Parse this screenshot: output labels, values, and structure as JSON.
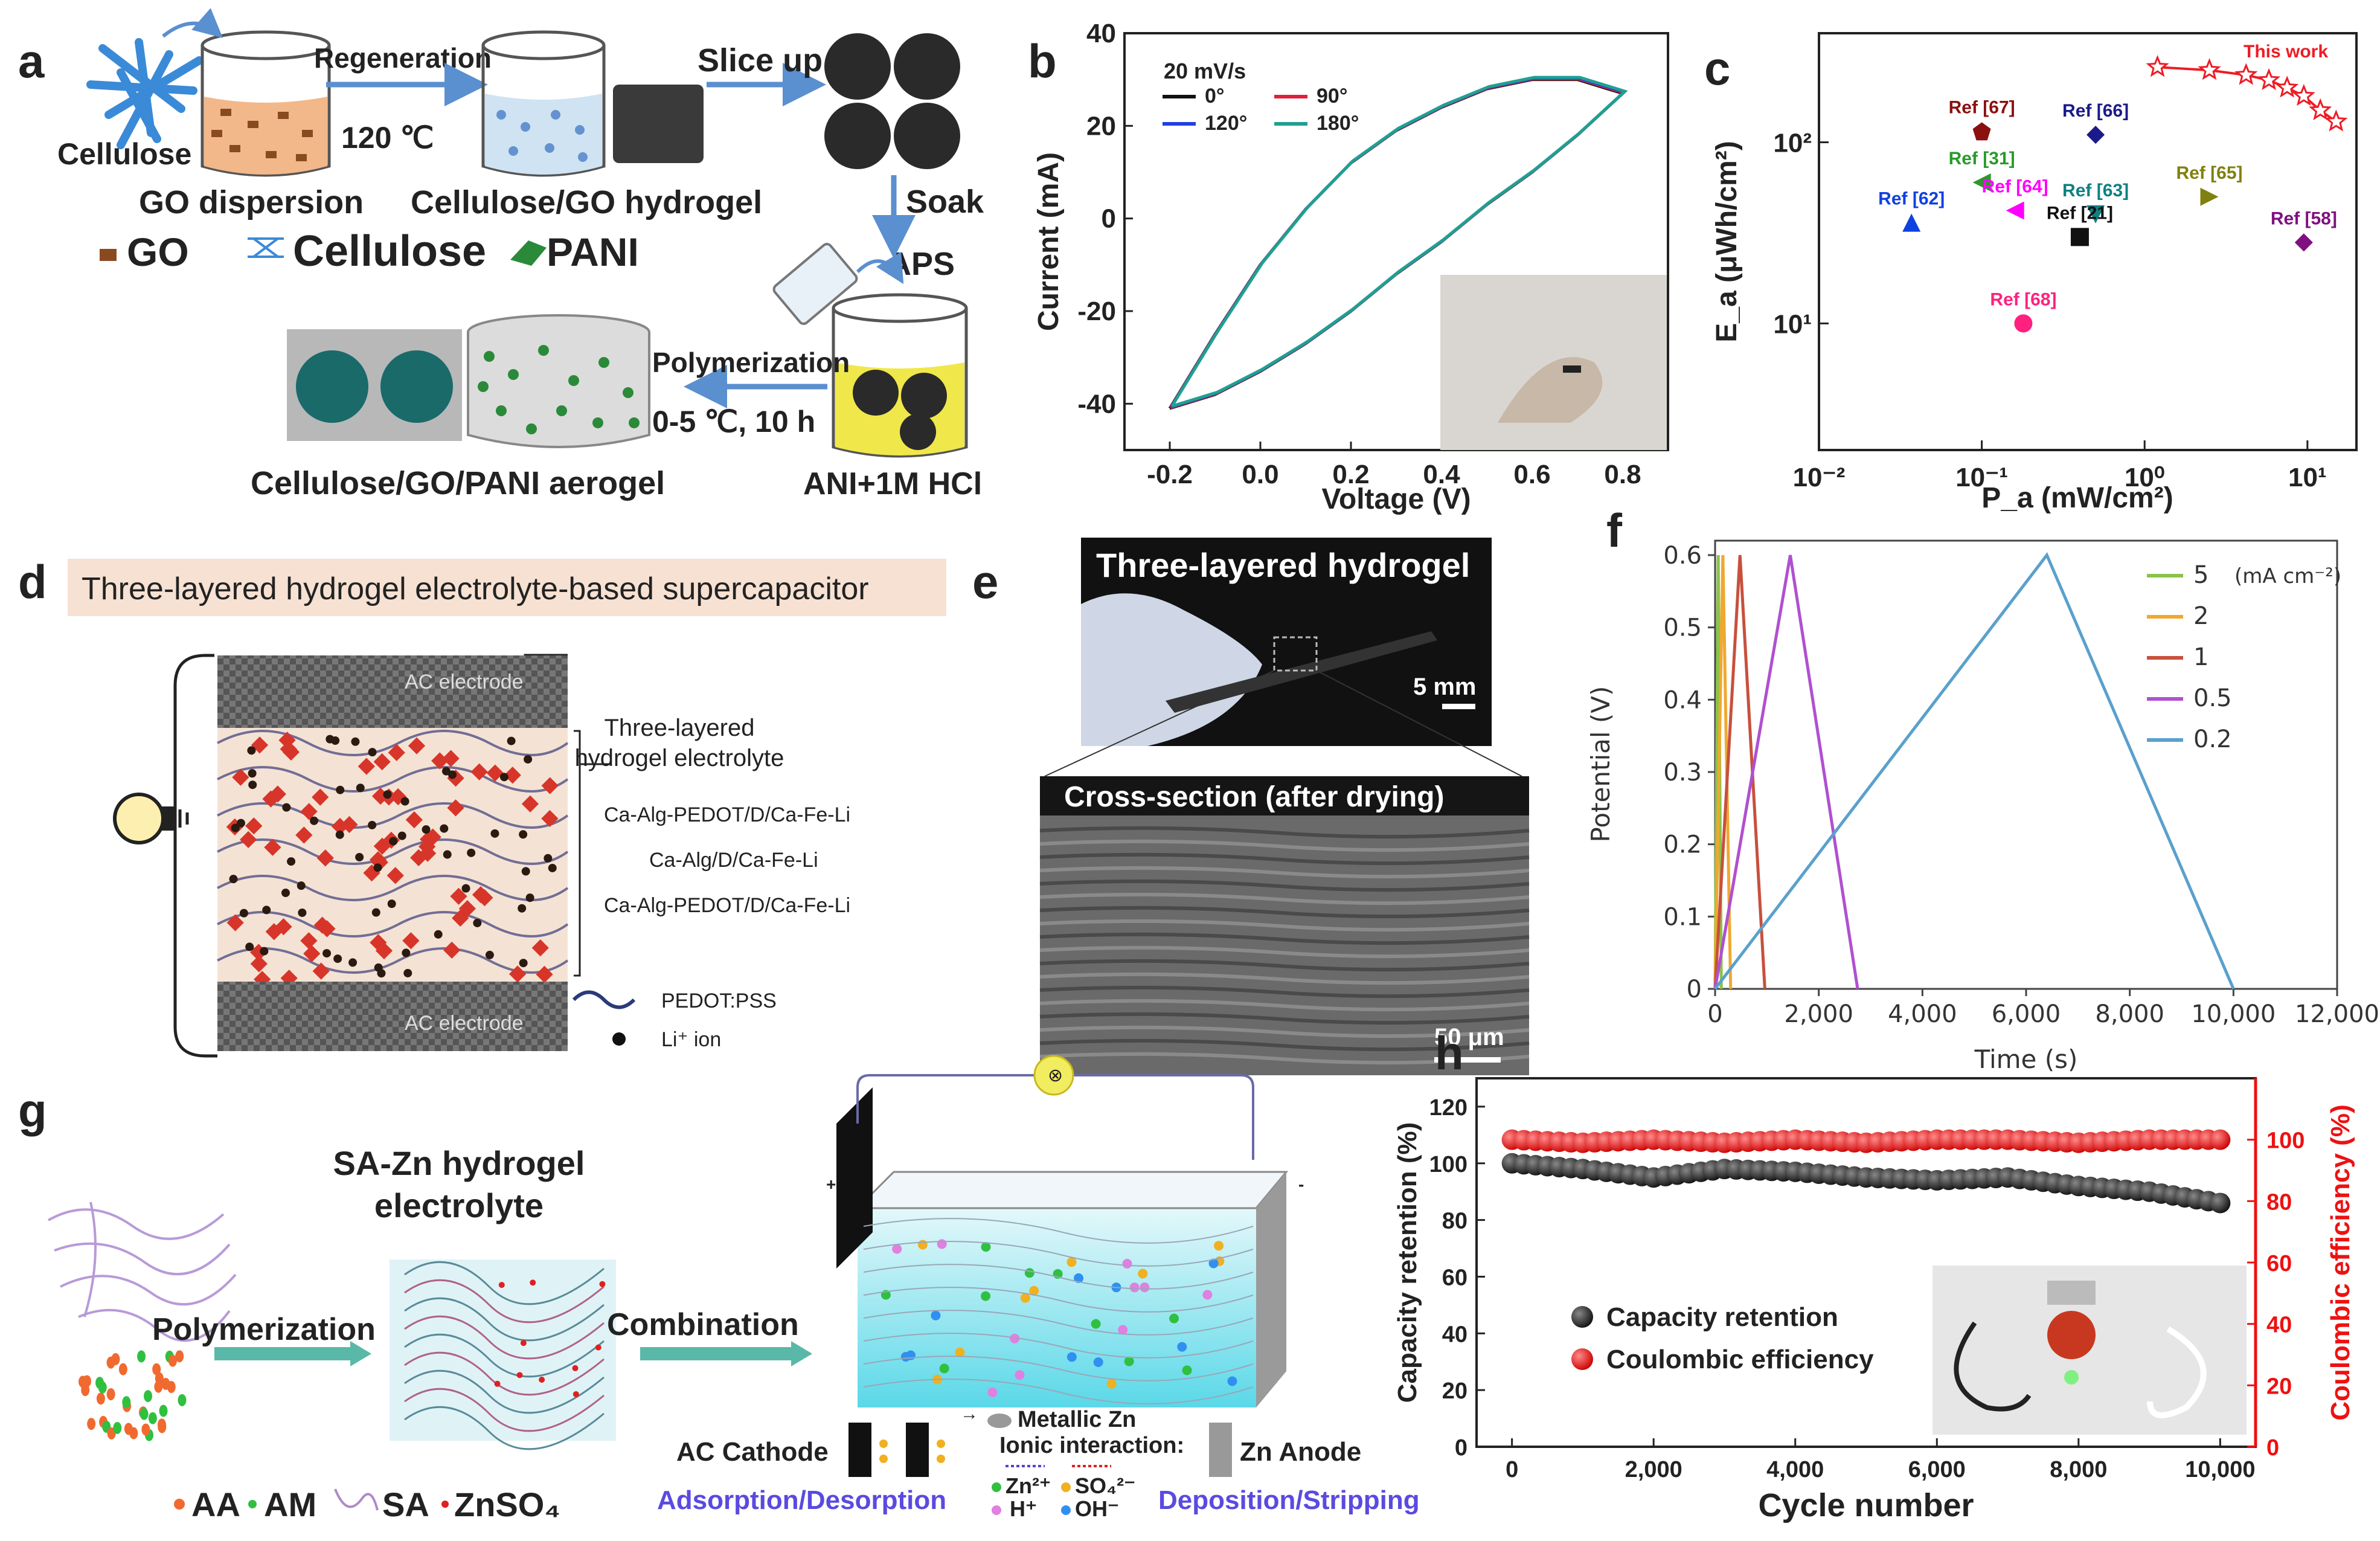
{
  "panel_labels": [
    "a",
    "b",
    "c",
    "d",
    "e",
    "f",
    "g",
    "h"
  ],
  "panel_a": {
    "cellulose": "Cellulose",
    "regeneration": "Regeneration",
    "temp": "120 ℃",
    "go_dispersion": "GO dispersion",
    "hydrogel": "Cellulose/GO hydrogel",
    "slice_up": "Slice up",
    "soak": "Soak",
    "aps": "APS",
    "polymerization": "Polymerization",
    "conditions": "0-5 ℃, 10 h",
    "aerogel": "Cellulose/GO/PANI aerogel",
    "ani": "ANI+1M HCl",
    "legend_go": "GO",
    "legend_cellulose": "Cellulose",
    "legend_pani": "PANI"
  },
  "panel_d": {
    "title": "Three-layered hydrogel electrolyte-based supercapacitor",
    "ac_top": "AC electrode",
    "ac_bottom": "AC electrode",
    "brace_title_1": "Three-layered",
    "brace_title_2": "hydrogel electrolyte",
    "layer1": "Ca-Alg-PEDOT/D/Ca-Fe-Li",
    "layer2": "Ca-Alg/D/Ca-Fe-Li",
    "layer3": "Ca-Alg-PEDOT/D/Ca-Fe-Li",
    "legend_pedot": "PEDOT:PSS",
    "legend_li": "Li⁺ ion"
  },
  "panel_e": {
    "top_title": "Three-layered hydrogel",
    "scale_top": "5 mm",
    "bottom_title": "Cross-section (after drying)",
    "scale_bottom": "50 μm"
  },
  "panel_g": {
    "title_1": "SA-Zn hydrogel",
    "title_2": "electrolyte",
    "polymerization": "Polymerization",
    "combination": "Combination",
    "metallic_zn": "Metallic Zn",
    "ionic": "Ionic interaction:",
    "ac_cathode": "AC Cathode",
    "zn_anode": "Zn Anode",
    "zn2": "Zn²⁺",
    "so4": "SO₄²⁻",
    "hplus": "H⁺",
    "ohminus": "OH⁻",
    "adsorption": "Adsorption/Desorption",
    "deposition": "Deposition/Stripping",
    "legend_aa": "AA",
    "legend_am": "AM",
    "legend_sa": "SA",
    "legend_znso4": "ZnSO₄"
  },
  "chart_data": [
    {
      "panel": "b",
      "type": "line",
      "title": "20 mV/s",
      "xlabel": "Voltage (V)",
      "ylabel": "Current (mA)",
      "xlim": [
        -0.3,
        0.9
      ],
      "ylim": [
        -50,
        40
      ],
      "xticks": [
        "-0.2",
        "0.0",
        "0.2",
        "0.4",
        "0.6",
        "0.8"
      ],
      "yticks": [
        "40",
        "20",
        "0",
        "-20",
        "-40"
      ],
      "series": [
        {
          "name": "0°",
          "color": "#111111"
        },
        {
          "name": "90°",
          "color": "#e0203a"
        },
        {
          "name": "120°",
          "color": "#2040e0"
        },
        {
          "name": "180°",
          "color": "#20a090"
        }
      ],
      "upper_curve": {
        "x": [
          -0.2,
          -0.1,
          0.0,
          0.1,
          0.2,
          0.3,
          0.4,
          0.5,
          0.6,
          0.7,
          0.8
        ],
        "y": [
          -41,
          -25,
          -10,
          2,
          12,
          19,
          24,
          28,
          30,
          30,
          27
        ]
      },
      "lower_curve": {
        "x": [
          0.8,
          0.7,
          0.6,
          0.5,
          0.4,
          0.3,
          0.2,
          0.1,
          0.0,
          -0.1,
          -0.2
        ],
        "y": [
          27,
          18,
          10,
          3,
          -5,
          -12,
          -20,
          -27,
          -33,
          -38,
          -41
        ]
      }
    },
    {
      "panel": "c",
      "type": "scatter",
      "xlabel": "P_a (mW/cm²)",
      "ylabel": "E_a (μWh/cm²)",
      "xscale": "log",
      "yscale": "log",
      "xlim": [
        0.01,
        20
      ],
      "ylim": [
        2,
        400
      ],
      "xticks": [
        "10⁻²",
        "10⁻¹",
        "10⁰",
        "10¹"
      ],
      "yticks": [
        "10²",
        "10¹"
      ],
      "points": [
        {
          "label": "Ref [67]",
          "x": 0.1,
          "y": 115,
          "color": "#8b1010",
          "shape": "pentagon"
        },
        {
          "label": "Ref [66]",
          "x": 0.5,
          "y": 110,
          "color": "#1a1a8a",
          "shape": "diamond"
        },
        {
          "label": "Ref [31]",
          "x": 0.1,
          "y": 60,
          "color": "#2a9a2a",
          "shape": "triangle-left"
        },
        {
          "label": "Ref [62]",
          "x": 0.037,
          "y": 36,
          "color": "#1040e0",
          "shape": "triangle-up"
        },
        {
          "label": "Ref [64]",
          "x": 0.16,
          "y": 42,
          "color": "#ff00ff",
          "shape": "triangle-left"
        },
        {
          "label": "Ref [63]",
          "x": 0.5,
          "y": 40,
          "color": "#108080",
          "shape": "triangle-down"
        },
        {
          "label": "Ref [21]",
          "x": 0.4,
          "y": 30,
          "color": "#111111",
          "shape": "square"
        },
        {
          "label": "Ref [65]",
          "x": 2.5,
          "y": 50,
          "color": "#808010",
          "shape": "triangle-right"
        },
        {
          "label": "Ref [58]",
          "x": 9.5,
          "y": 28,
          "color": "#801080",
          "shape": "diamond"
        },
        {
          "label": "Ref [68]",
          "x": 0.18,
          "y": 10,
          "color": "#ff2080",
          "shape": "circle"
        }
      ],
      "this_work": {
        "label": "This work",
        "color": "#ee1c25",
        "x": [
          1.2,
          2.5,
          4.2,
          5.8,
          7.5,
          9.5,
          12,
          15
        ],
        "y": [
          260,
          250,
          235,
          220,
          200,
          180,
          150,
          130
        ]
      }
    },
    {
      "panel": "f",
      "type": "line",
      "xlabel": "Time (s)",
      "ylabel": "Potential (V)",
      "xlim": [
        0,
        12000
      ],
      "ylim": [
        0,
        0.62
      ],
      "xticks": [
        "0",
        "2,000",
        "4,000",
        "6,000",
        "8,000",
        "10,000",
        "12,000"
      ],
      "yticks": [
        "0.6",
        "0.5",
        "0.4",
        "0.3",
        "0.2",
        "0.1",
        "0"
      ],
      "legend_unit": "(mA cm⁻²)",
      "series": [
        {
          "name": "5",
          "color": "#8bc34a",
          "x": [
            0,
            60,
            120
          ],
          "y": [
            0,
            0.6,
            0
          ]
        },
        {
          "name": "2",
          "color": "#f0a830",
          "x": [
            0,
            150,
            300
          ],
          "y": [
            0,
            0.6,
            0
          ]
        },
        {
          "name": "1",
          "color": "#c8503c",
          "x": [
            0,
            480,
            960
          ],
          "y": [
            0,
            0.6,
            0
          ]
        },
        {
          "name": "0.5",
          "color": "#b050d0",
          "x": [
            0,
            1450,
            2750
          ],
          "y": [
            0,
            0.6,
            0
          ]
        },
        {
          "name": "0.2",
          "color": "#5aa0cc",
          "x": [
            0,
            6400,
            10000
          ],
          "y": [
            0,
            0.6,
            0
          ]
        }
      ]
    },
    {
      "panel": "h",
      "type": "scatter",
      "xlabel": "Cycle number",
      "ylabel_left": "Capacity retention (%)",
      "ylabel_right": "Coulombic efficiency (%)",
      "xlim": [
        -500,
        10500
      ],
      "ylim_left": [
        0,
        130
      ],
      "ylim_right": [
        0,
        120
      ],
      "xticks": [
        "0",
        "2,000",
        "4,000",
        "6,000",
        "8,000",
        "10,000"
      ],
      "yticks_left": [
        "120",
        "100",
        "80",
        "60",
        "40",
        "20",
        "0"
      ],
      "yticks_right": [
        "100",
        "80",
        "60",
        "40",
        "20",
        "0"
      ],
      "series": [
        {
          "name": "Capacity retention",
          "color": "#111111",
          "axis": "left",
          "x": [
            0,
            1000,
            2000,
            3000,
            4000,
            5000,
            6000,
            7000,
            8000,
            9000,
            10000
          ],
          "y": [
            100,
            98,
            95,
            98,
            97,
            95,
            94,
            95,
            92,
            90,
            86
          ]
        },
        {
          "name": "Coulombic efficiency",
          "color": "#ee1111",
          "axis": "right",
          "x": [
            0,
            1000,
            2000,
            3000,
            4000,
            5000,
            6000,
            7000,
            8000,
            9000,
            10000
          ],
          "y": [
            100,
            99,
            100,
            99,
            100,
            99,
            100,
            100,
            99,
            100,
            100
          ]
        }
      ]
    }
  ]
}
